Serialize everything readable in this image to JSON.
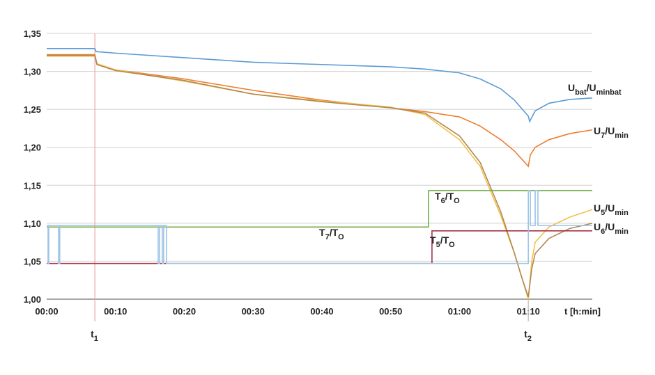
{
  "chart_data": {
    "type": "line",
    "x_label": "t [h:min]",
    "xlim": [
      0,
      79.3
    ],
    "ylim": [
      1.0,
      1.35
    ],
    "xticks": [
      {
        "value": 0,
        "label": "00:00"
      },
      {
        "value": 10,
        "label": "00:10"
      },
      {
        "value": 20,
        "label": "00:20"
      },
      {
        "value": 30,
        "label": "00:30"
      },
      {
        "value": 40,
        "label": "00:40"
      },
      {
        "value": 50,
        "label": "00:50"
      },
      {
        "value": 60,
        "label": "01:00"
      },
      {
        "value": 70,
        "label": "01:10"
      }
    ],
    "yticks": [
      {
        "value": 1.0,
        "label": "1,00"
      },
      {
        "value": 1.05,
        "label": "1,05"
      },
      {
        "value": 1.1,
        "label": "1,10"
      },
      {
        "value": 1.15,
        "label": "1,15"
      },
      {
        "value": 1.2,
        "label": "1,20"
      },
      {
        "value": 1.25,
        "label": "1,25"
      },
      {
        "value": 1.3,
        "label": "1,30"
      },
      {
        "value": 1.35,
        "label": "1,35"
      }
    ],
    "grid": true,
    "markers": [
      {
        "x": 7,
        "label": [
          "t",
          "1"
        ],
        "color": "#f4a3a3"
      },
      {
        "x": 70,
        "label": [
          "t",
          "2"
        ],
        "color": "#bbbbbb"
      }
    ],
    "series": [
      {
        "label": [
          "U",
          "bat",
          "/U",
          "minbat"
        ],
        "color": "#5b9bd5",
        "x": [
          0,
          7,
          7.2,
          10,
          20,
          30,
          40,
          50,
          55,
          60,
          63,
          66,
          68,
          70,
          70.2,
          71,
          73,
          76,
          79.3
        ],
        "values": [
          1.33,
          1.33,
          1.326,
          1.324,
          1.318,
          1.312,
          1.309,
          1.306,
          1.303,
          1.298,
          1.29,
          1.277,
          1.262,
          1.241,
          1.234,
          1.248,
          1.258,
          1.263,
          1.265
        ]
      },
      {
        "label": [
          "U",
          "7",
          "/U",
          "min"
        ],
        "color": "#ed7d31",
        "x": [
          0,
          7,
          7.3,
          10,
          20,
          30,
          40,
          50,
          55,
          60,
          63,
          66,
          68,
          70,
          70.3,
          71,
          73,
          76,
          79.3
        ],
        "values": [
          1.322,
          1.322,
          1.31,
          1.302,
          1.29,
          1.275,
          1.262,
          1.252,
          1.247,
          1.24,
          1.228,
          1.21,
          1.195,
          1.175,
          1.19,
          1.2,
          1.21,
          1.218,
          1.223
        ]
      },
      {
        "label": [
          "U",
          "5",
          "/U",
          "min"
        ],
        "color": "#f2c14e",
        "x": [
          0,
          7,
          7.3,
          10,
          20,
          30,
          40,
          50,
          55,
          60,
          63,
          66,
          68,
          69,
          70,
          70.5,
          71,
          73,
          76,
          79.3
        ],
        "values": [
          1.32,
          1.32,
          1.31,
          1.302,
          1.287,
          1.27,
          1.261,
          1.253,
          1.243,
          1.21,
          1.175,
          1.11,
          1.06,
          1.03,
          1.0,
          1.05,
          1.075,
          1.095,
          1.108,
          1.118
        ]
      },
      {
        "label": [
          "U",
          "6",
          "/U",
          "min"
        ],
        "color": "#b08850",
        "x": [
          0,
          7,
          7.3,
          10,
          20,
          30,
          40,
          50,
          55,
          60,
          63,
          66,
          68,
          69,
          70,
          70.5,
          71,
          73,
          76,
          79.3
        ],
        "values": [
          1.321,
          1.321,
          1.309,
          1.301,
          1.288,
          1.27,
          1.26,
          1.252,
          1.245,
          1.215,
          1.18,
          1.115,
          1.06,
          1.03,
          1.003,
          1.04,
          1.06,
          1.08,
          1.093,
          1.1
        ]
      },
      {
        "label": [
          "T",
          "6",
          "/T",
          "O"
        ],
        "color": "#70ad47",
        "x": [
          0,
          55.5,
          55.5,
          79.3
        ],
        "values": [
          1.095,
          1.095,
          1.143,
          1.143
        ]
      },
      {
        "label": [
          "T",
          "5",
          "/T",
          "O"
        ],
        "color": "#a5324a",
        "x": [
          0,
          56,
          56,
          79.3
        ],
        "values": [
          1.047,
          1.047,
          1.09,
          1.09
        ]
      },
      {
        "label": [
          "T",
          "7",
          "/T",
          "O"
        ],
        "color": "#9dc3e6",
        "x": [
          0,
          0.2,
          0.2,
          0.3,
          0.3,
          1.7,
          1.7,
          1.9,
          1.9,
          16.2,
          16.2,
          16.4,
          16.4,
          16.8,
          16.8,
          17.0,
          17.0,
          17.4,
          17.4,
          70,
          70,
          70.3,
          70.3,
          71,
          71,
          71.4,
          71.4,
          79.3
        ],
        "values": [
          1.097,
          1.097,
          1.047,
          1.047,
          1.097,
          1.097,
          1.047,
          1.047,
          1.097,
          1.097,
          1.047,
          1.047,
          1.097,
          1.097,
          1.047,
          1.047,
          1.097,
          1.097,
          1.047,
          1.047,
          1.143,
          1.143,
          1.097,
          1.097,
          1.143,
          1.143,
          1.097,
          1.097
        ]
      }
    ]
  }
}
